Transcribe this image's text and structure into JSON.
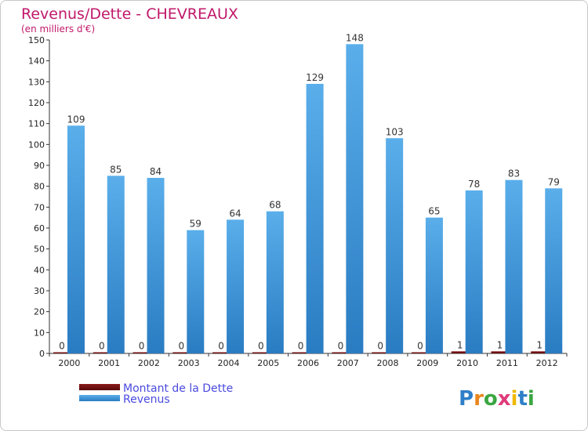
{
  "chart_data": {
    "type": "bar",
    "title": "Revenus/Dette - CHEVREAUX",
    "subtitle": "(en milliers d'€)",
    "categories": [
      "2000",
      "2001",
      "2002",
      "2003",
      "2004",
      "2005",
      "2006",
      "2007",
      "2008",
      "2009",
      "2010",
      "2011",
      "2012"
    ],
    "series": [
      {
        "name": "Montant de la Dette",
        "color": "#6b0c0c",
        "values": [
          0,
          0,
          0,
          0,
          0,
          0,
          0,
          0,
          0,
          0,
          1,
          1,
          1
        ]
      },
      {
        "name": "Revenus",
        "color": "#3b92d8",
        "values": [
          109,
          85,
          84,
          59,
          64,
          68,
          129,
          148,
          103,
          65,
          78,
          83,
          79
        ]
      }
    ],
    "ylim": [
      0,
      150
    ],
    "yticks": [
      0,
      10,
      20,
      30,
      40,
      50,
      60,
      70,
      80,
      90,
      100,
      110,
      120,
      130,
      140,
      150
    ],
    "grid": false,
    "legend_position": "bottom-left"
  },
  "branding": {
    "logo_text": "Proxiti",
    "logo_colors": [
      "#2f7fc8",
      "#e8861c",
      "#3aa640",
      "#e03b7a",
      "#f0b800",
      "#2f7fc8",
      "#3aa640"
    ]
  }
}
